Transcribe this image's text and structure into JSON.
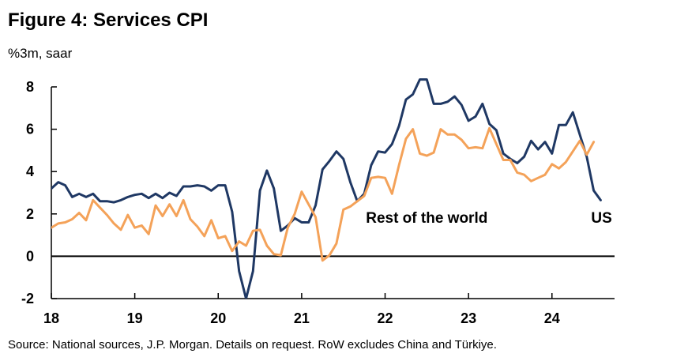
{
  "chart_data": {
    "type": "line",
    "title": "Figure 4: Services CPI",
    "subtitle": "%3m, saar",
    "source": "Source: National sources, J.P. Morgan. Details on request. RoW excludes China and Türkiye.",
    "xlabel": "",
    "ylabel": "",
    "ylim": [
      -2,
      8
    ],
    "yticks": [
      "-2",
      "0",
      "2",
      "4",
      "6",
      "8"
    ],
    "xlim": [
      2018.0,
      2024.8
    ],
    "xticks": [
      {
        "label": "18",
        "x": 2018
      },
      {
        "label": "19",
        "x": 2019
      },
      {
        "label": "20",
        "x": 2020
      },
      {
        "label": "21",
        "x": 2021
      },
      {
        "label": "22",
        "x": 2022
      },
      {
        "label": "23",
        "x": 2023
      },
      {
        "label": "24",
        "x": 2024
      }
    ],
    "grid": false,
    "series": [
      {
        "name": "US",
        "color": "#1F3864",
        "label": {
          "text": "US",
          "x": 2024.47,
          "y": 1.8
        },
        "x_start": 2018.0,
        "values": [
          3.2,
          3.5,
          3.35,
          2.8,
          2.95,
          2.8,
          2.95,
          2.6,
          2.6,
          2.55,
          2.65,
          2.8,
          2.9,
          2.95,
          2.75,
          2.95,
          2.75,
          3.0,
          2.85,
          3.3,
          3.3,
          3.35,
          3.3,
          3.1,
          3.35,
          3.35,
          2.1,
          -0.7,
          -2.0,
          -0.7,
          3.1,
          4.05,
          3.2,
          1.2,
          1.45,
          1.8,
          1.6,
          1.6,
          2.4,
          4.1,
          4.5,
          4.95,
          4.6,
          3.5,
          2.6,
          2.95,
          4.3,
          4.95,
          4.9,
          5.3,
          6.15,
          7.4,
          7.65,
          8.35,
          8.35,
          7.2,
          7.2,
          7.3,
          7.55,
          7.15,
          6.4,
          6.6,
          7.2,
          6.25,
          5.95,
          4.85,
          4.6,
          4.4,
          4.7,
          5.45,
          5.05,
          5.4,
          4.85,
          6.2,
          6.2,
          6.8,
          5.75,
          4.7,
          3.1,
          2.65
        ]
      },
      {
        "name": "Rest of the world",
        "color": "#F4A259",
        "label": {
          "text": "Rest of the world",
          "x": 2021.77,
          "y": 1.8
        },
        "x_start": 2018.0,
        "values": [
          1.35,
          1.55,
          1.6,
          1.75,
          2.05,
          1.7,
          2.65,
          2.3,
          1.95,
          1.55,
          1.25,
          1.95,
          1.35,
          1.45,
          1.05,
          2.4,
          1.9,
          2.45,
          1.9,
          2.65,
          1.75,
          1.4,
          0.95,
          1.7,
          0.85,
          0.95,
          0.25,
          0.7,
          0.5,
          1.2,
          1.25,
          0.5,
          0.1,
          0.05,
          1.35,
          2.0,
          3.05,
          2.45,
          1.85,
          -0.2,
          0.05,
          0.6,
          2.2,
          2.35,
          2.6,
          2.85,
          3.7,
          3.75,
          3.7,
          2.95,
          4.3,
          5.55,
          6.0,
          4.85,
          4.75,
          4.9,
          6.0,
          5.75,
          5.75,
          5.5,
          5.1,
          5.15,
          5.1,
          6.05,
          5.3,
          4.55,
          4.55,
          3.95,
          3.85,
          3.55,
          3.7,
          3.85,
          4.35,
          4.15,
          4.45,
          4.95,
          5.45,
          4.8,
          5.4
        ]
      }
    ]
  }
}
